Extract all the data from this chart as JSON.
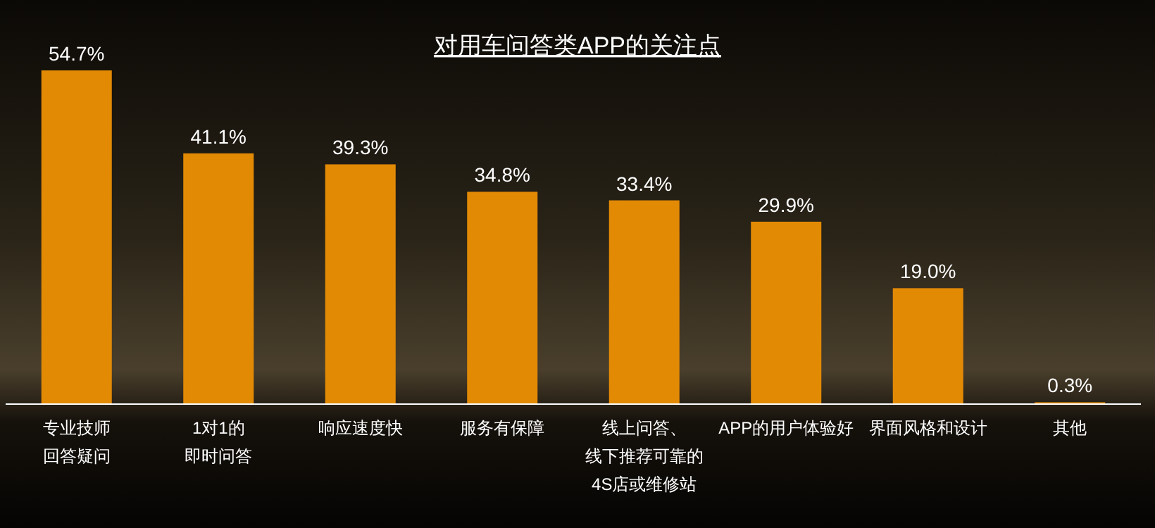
{
  "chart_data": {
    "type": "bar",
    "title": "对用车问答类APP的关注点",
    "categories": [
      "专业技师回答疑问",
      "1对1的即时问答",
      "响应速度快",
      "服务有保障",
      "线上问答、线下推荐可靠的4S店或维修站",
      "APP的用户体验好",
      "界面风格和设计",
      "其他"
    ],
    "values": [
      54.7,
      41.1,
      39.3,
      34.8,
      33.4,
      29.9,
      19.0,
      0.3
    ],
    "value_labels": [
      "54.7%",
      "41.1%",
      "39.3%",
      "34.8%",
      "33.4%",
      "29.9%",
      "19.0%",
      "0.3%"
    ],
    "color": "#e38a05"
  }
}
